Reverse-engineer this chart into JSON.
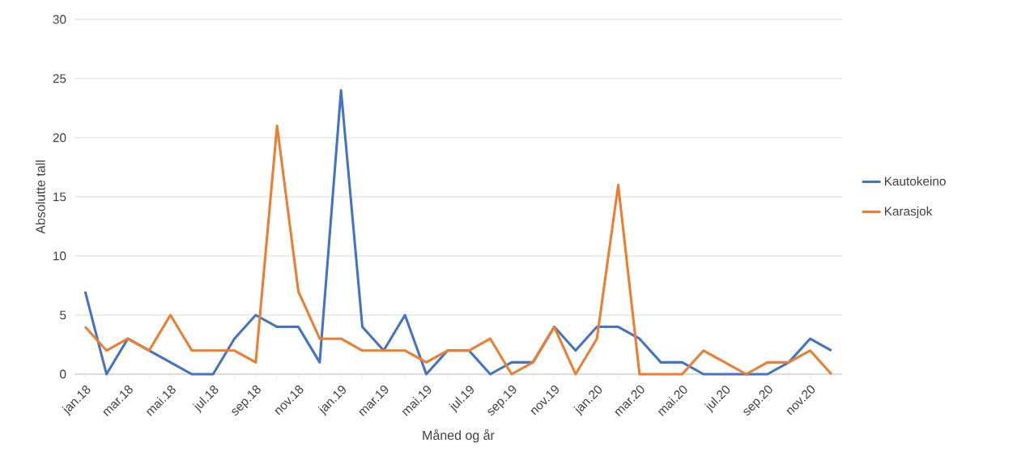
{
  "chart_data": {
    "type": "line",
    "xlabel": "Måned og år",
    "ylabel": "Absolutte tall",
    "categories": [
      "jan.18",
      null,
      "mar.18",
      null,
      "mai.18",
      null,
      "jul.18",
      null,
      "sep.18",
      null,
      "nov.18",
      null,
      "jan.19",
      null,
      "mar.19",
      null,
      "mai.19",
      null,
      "jul.19",
      null,
      "sep.19",
      null,
      "nov.19",
      null,
      "jan.20",
      null,
      "mar.20",
      null,
      "mai.20",
      null,
      "jul.20",
      null,
      "sep.20",
      null,
      "nov.20",
      null
    ],
    "series": [
      {
        "name": "Kautokeino",
        "color": "#4472c4",
        "values": [
          7,
          0,
          3,
          2,
          1,
          0,
          0,
          3,
          5,
          4,
          4,
          1,
          24,
          4,
          2,
          5,
          0,
          2,
          2,
          0,
          1,
          1,
          4,
          2,
          4,
          4,
          3,
          1,
          1,
          0,
          0,
          0,
          0,
          1,
          3,
          2
        ]
      },
      {
        "name": "Karasjok",
        "color": "#ed7d31",
        "values": [
          4,
          2,
          3,
          2,
          5,
          2,
          2,
          2,
          1,
          21,
          7,
          3,
          3,
          2,
          2,
          2,
          1,
          2,
          2,
          3,
          0,
          1,
          4,
          0,
          3,
          16,
          0,
          0,
          0,
          2,
          1,
          0,
          1,
          1,
          2,
          0
        ]
      }
    ],
    "ylim": [
      0,
      30
    ],
    "yticks": [
      0,
      5,
      10,
      15,
      20,
      25,
      30
    ],
    "grid": "y",
    "legend": "right"
  }
}
